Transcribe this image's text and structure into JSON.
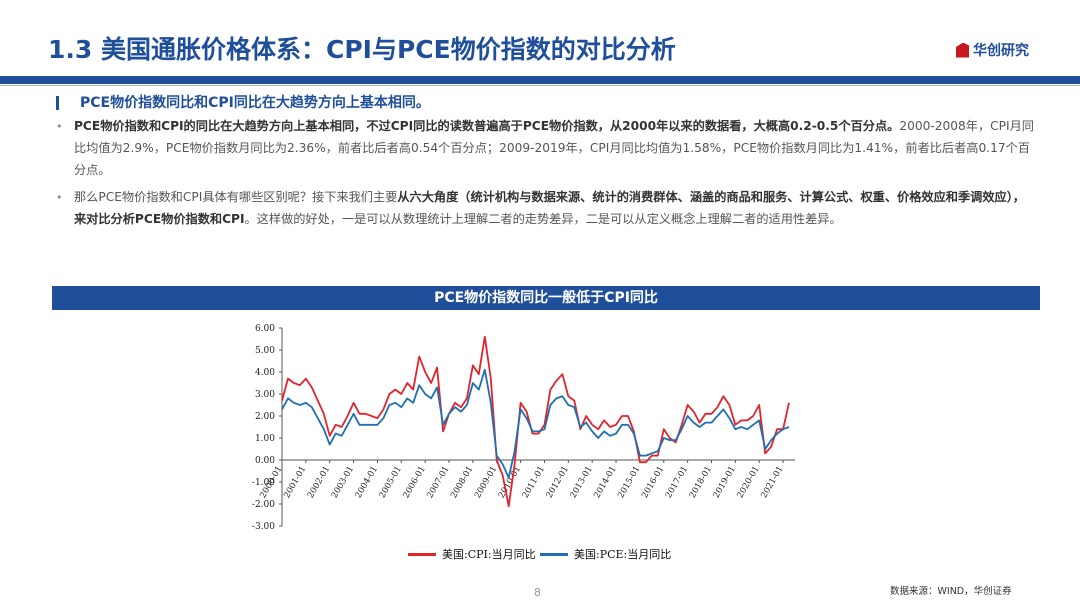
{
  "slide": {
    "title": "1.3 美国通胀价格体系：CPI与PCE物价指数的对比分析",
    "logo_text": "华创研究",
    "subheading": "PCE物价指数同比和CPI同比在大趋势方向上基本相同。",
    "bullet1_bold": "PCE物价指数和CPI的同比在大趋势方向上基本相同，不过CPI同比的读数普遍高于PCE物价指数，从2000年以来的数据看，大概高0.2-0.5个百分点。",
    "bullet1_rest": "2000-2008年，CPI月同比均值为2.9%，PCE物价指数月同比为2.36%，前者比后者高0.54个百分点；2009-2019年，CPI月同比均值为1.58%，PCE物价指数月同比为1.41%，前者比后者高0.17个百分点。",
    "bullet2_a": "那么PCE物价指数和CPI具体有哪些区别呢？接下来我们主要",
    "bullet2_bold": "从六大角度（统计机构与数据来源、统计的消费群体、涵盖的商品和服务、计算公式、权重、价格效应和季调效应），来对比分析PCE物价指数和CPI",
    "bullet2_c": "。这样做的好处，一是可以从数理统计上理解二者的走势差异，二是可以从定义概念上理解二者的适用性差异。",
    "chart_banner": "PCE物价指数同比一般低于CPI同比",
    "page_number": "8",
    "source": "数据来源：WIND，华创证券",
    "accent_color": "#1f4e9b",
    "bullet_marker": "•"
  },
  "chart_data": {
    "type": "line",
    "x_tick_labels": [
      "2000-01",
      "2001-01",
      "2002-01",
      "2003-01",
      "2004-01",
      "2005-01",
      "2006-01",
      "2007-01",
      "2008-01",
      "2009-01",
      "2010-01",
      "2011-01",
      "2012-01",
      "2013-01",
      "2014-01",
      "2015-01",
      "2016-01",
      "2017-01",
      "2018-01",
      "2019-01",
      "2020-01",
      "2021-01"
    ],
    "y_tick_labels": [
      "6.00",
      "5.00",
      "4.00",
      "3.00",
      "2.00",
      "1.00",
      "0.00",
      "-1.00",
      "-2.00",
      "-3.00"
    ],
    "ylim": [
      -3,
      6
    ],
    "xlim": [
      2000.0,
      2021.5
    ],
    "series": [
      {
        "name": "美国:CPI:当月同比",
        "color": "#e3232c",
        "x": [
          2000.0,
          2000.25,
          2000.5,
          2000.75,
          2001.0,
          2001.25,
          2001.5,
          2001.75,
          2002.0,
          2002.25,
          2002.5,
          2002.75,
          2003.0,
          2003.25,
          2003.5,
          2003.75,
          2004.0,
          2004.25,
          2004.5,
          2004.75,
          2005.0,
          2005.25,
          2005.5,
          2005.75,
          2006.0,
          2006.25,
          2006.5,
          2006.75,
          2007.0,
          2007.25,
          2007.5,
          2007.75,
          2008.0,
          2008.25,
          2008.5,
          2008.75,
          2009.0,
          2009.25,
          2009.5,
          2009.75,
          2010.0,
          2010.25,
          2010.5,
          2010.75,
          2011.0,
          2011.25,
          2011.5,
          2011.75,
          2012.0,
          2012.25,
          2012.5,
          2012.75,
          2013.0,
          2013.25,
          2013.5,
          2013.75,
          2014.0,
          2014.25,
          2014.5,
          2014.75,
          2015.0,
          2015.25,
          2015.5,
          2015.75,
          2016.0,
          2016.25,
          2016.5,
          2016.75,
          2017.0,
          2017.25,
          2017.5,
          2017.75,
          2018.0,
          2018.25,
          2018.5,
          2018.75,
          2019.0,
          2019.25,
          2019.5,
          2019.75,
          2020.0,
          2020.25,
          2020.5,
          2020.75,
          2021.0,
          2021.25
        ],
        "y": [
          2.7,
          3.7,
          3.5,
          3.4,
          3.7,
          3.3,
          2.7,
          2.1,
          1.1,
          1.6,
          1.5,
          2.0,
          2.6,
          2.1,
          2.1,
          2.0,
          1.9,
          2.3,
          3.0,
          3.2,
          3.0,
          3.5,
          3.2,
          4.7,
          4.0,
          3.5,
          4.2,
          1.3,
          2.1,
          2.6,
          2.4,
          2.8,
          4.3,
          3.9,
          5.6,
          3.7,
          0.0,
          -0.7,
          -2.1,
          -0.2,
          2.6,
          2.2,
          1.2,
          1.2,
          1.6,
          3.2,
          3.6,
          3.9,
          2.9,
          2.7,
          1.4,
          2.0,
          1.6,
          1.4,
          1.8,
          1.5,
          1.6,
          2.0,
          2.0,
          1.3,
          -0.1,
          -0.1,
          0.2,
          0.2,
          1.4,
          1.0,
          0.8,
          1.6,
          2.5,
          2.2,
          1.7,
          2.1,
          2.1,
          2.4,
          2.9,
          2.5,
          1.6,
          1.8,
          1.8,
          2.0,
          2.5,
          0.3,
          0.6,
          1.4,
          1.4,
          2.6
        ]
      },
      {
        "name": "美国:PCE:当月同比",
        "color": "#1f6fb2",
        "x": [
          2000.0,
          2000.25,
          2000.5,
          2000.75,
          2001.0,
          2001.25,
          2001.5,
          2001.75,
          2002.0,
          2002.25,
          2002.5,
          2002.75,
          2003.0,
          2003.25,
          2003.5,
          2003.75,
          2004.0,
          2004.25,
          2004.5,
          2004.75,
          2005.0,
          2005.25,
          2005.5,
          2005.75,
          2006.0,
          2006.25,
          2006.5,
          2006.75,
          2007.0,
          2007.25,
          2007.5,
          2007.75,
          2008.0,
          2008.25,
          2008.5,
          2008.75,
          2009.0,
          2009.25,
          2009.5,
          2009.75,
          2010.0,
          2010.25,
          2010.5,
          2010.75,
          2011.0,
          2011.25,
          2011.5,
          2011.75,
          2012.0,
          2012.25,
          2012.5,
          2012.75,
          2013.0,
          2013.25,
          2013.5,
          2013.75,
          2014.0,
          2014.25,
          2014.5,
          2014.75,
          2015.0,
          2015.25,
          2015.5,
          2015.75,
          2016.0,
          2016.25,
          2016.5,
          2016.75,
          2017.0,
          2017.25,
          2017.5,
          2017.75,
          2018.0,
          2018.25,
          2018.5,
          2018.75,
          2019.0,
          2019.25,
          2019.5,
          2019.75,
          2020.0,
          2020.25,
          2020.5,
          2020.75,
          2021.0,
          2021.25
        ],
        "y": [
          2.3,
          2.8,
          2.6,
          2.5,
          2.6,
          2.4,
          1.9,
          1.4,
          0.7,
          1.2,
          1.1,
          1.6,
          2.1,
          1.6,
          1.6,
          1.6,
          1.6,
          1.9,
          2.5,
          2.6,
          2.4,
          2.8,
          2.6,
          3.4,
          3.0,
          2.8,
          3.3,
          1.6,
          2.1,
          2.4,
          2.2,
          2.5,
          3.5,
          3.2,
          4.1,
          2.6,
          0.2,
          -0.2,
          -0.8,
          0.4,
          2.3,
          1.9,
          1.3,
          1.3,
          1.4,
          2.5,
          2.8,
          2.9,
          2.5,
          2.4,
          1.5,
          1.7,
          1.3,
          1.0,
          1.3,
          1.1,
          1.2,
          1.6,
          1.6,
          1.2,
          0.2,
          0.2,
          0.3,
          0.4,
          1.0,
          0.9,
          0.9,
          1.4,
          2.0,
          1.7,
          1.5,
          1.7,
          1.7,
          2.0,
          2.3,
          1.9,
          1.4,
          1.5,
          1.4,
          1.6,
          1.8,
          0.5,
          0.9,
          1.2,
          1.4,
          1.5
        ]
      }
    ],
    "grid": false,
    "legend_position": "bottom"
  }
}
